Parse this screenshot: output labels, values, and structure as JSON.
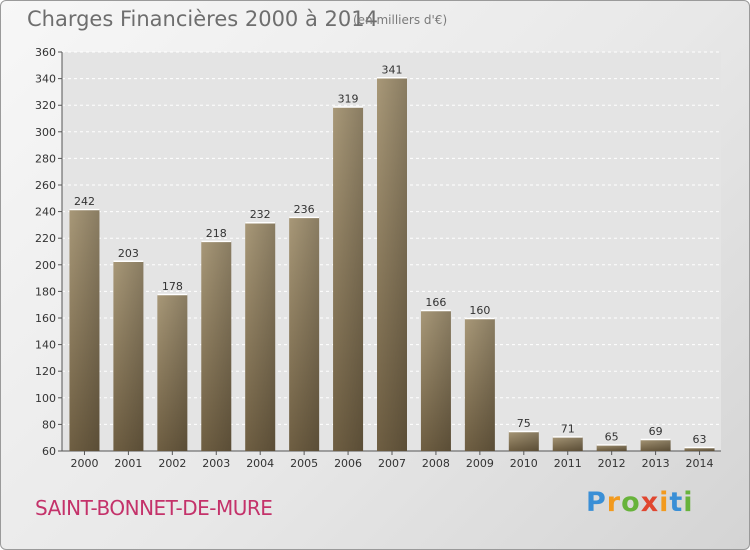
{
  "header": {
    "title": "Charges Financières 2000 à 2014",
    "subtitle": "(en milliers d'€)"
  },
  "footer": {
    "town": "SAINT-BONNET-DE-MURE",
    "logo_letters": [
      "P",
      "r",
      "o",
      "x",
      "i",
      "t",
      "i"
    ]
  },
  "colors": {
    "bar_top": "#a89878",
    "bar_bottom": "#6e5e42",
    "town": "#c4326a"
  },
  "chart_data": {
    "type": "bar",
    "title": "Charges Financières 2000 à 2014",
    "subtitle": "(en milliers d'€)",
    "categories": [
      "2000",
      "2001",
      "2002",
      "2003",
      "2004",
      "2005",
      "2006",
      "2007",
      "2008",
      "2009",
      "2010",
      "2011",
      "2012",
      "2013",
      "2014"
    ],
    "values": [
      242,
      203,
      178,
      218,
      232,
      236,
      319,
      341,
      166,
      160,
      75,
      71,
      65,
      69,
      63
    ],
    "ylim": [
      60,
      360
    ],
    "yticks": [
      60,
      80,
      100,
      120,
      140,
      160,
      180,
      200,
      220,
      240,
      260,
      280,
      300,
      320,
      340,
      360
    ],
    "grid": true,
    "legend": "none"
  }
}
